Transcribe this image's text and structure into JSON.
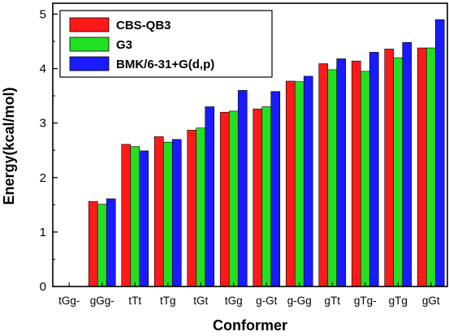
{
  "chart_data": {
    "type": "bar",
    "title": "",
    "xlabel": "Conformer",
    "ylabel": "Energy(kcal/mol)",
    "ylim": [
      0,
      5.2
    ],
    "yticks": [
      "0",
      "1",
      "2",
      "3",
      "4",
      "5"
    ],
    "grid": false,
    "legend_position": "top-left",
    "categories": [
      "tGg-",
      "gGg-",
      "tTt",
      "tTg",
      "tGt",
      "tGg",
      "g-Gt",
      "g-Gg",
      "gTt",
      "gTg-",
      "gTg",
      "gGt"
    ],
    "series": [
      {
        "name": "CBS-QB3",
        "color": "#ff1a1a",
        "values": [
          0,
          1.56,
          2.61,
          2.75,
          2.87,
          3.2,
          3.26,
          3.77,
          4.09,
          4.14,
          4.36,
          4.38
        ]
      },
      {
        "name": "G3",
        "color": "#22e022",
        "values": [
          0,
          1.51,
          2.57,
          2.65,
          2.91,
          3.22,
          3.3,
          3.76,
          3.98,
          3.95,
          4.2,
          4.38
        ]
      },
      {
        "name": "BMK/6-31+G(d,p)",
        "color": "#1a1aff",
        "values": [
          0,
          1.61,
          2.49,
          2.7,
          3.3,
          3.6,
          3.58,
          3.86,
          4.18,
          4.3,
          4.48,
          4.9
        ]
      }
    ]
  }
}
